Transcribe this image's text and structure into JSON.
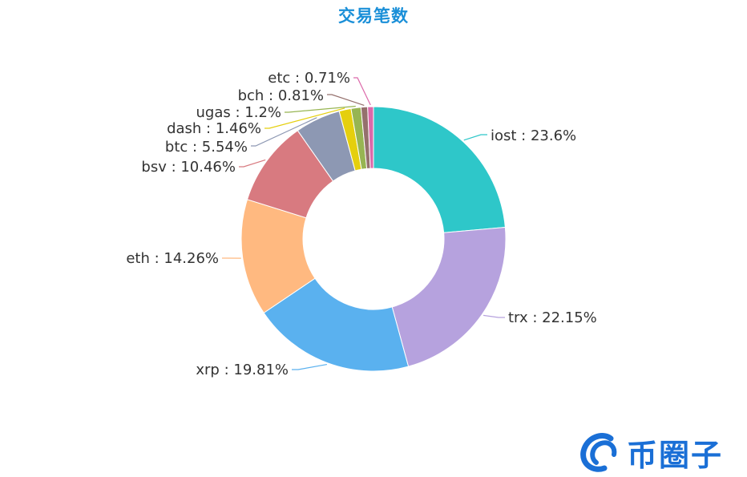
{
  "chart_data": {
    "type": "pie",
    "donut": true,
    "title": "交易笔数",
    "labels": [
      "iost",
      "trx",
      "xrp",
      "eth",
      "bsv",
      "btc",
      "dash",
      "ugas",
      "bch",
      "etc"
    ],
    "values": [
      23.6,
      22.15,
      19.81,
      14.26,
      10.46,
      5.54,
      1.46,
      1.2,
      0.81,
      0.71
    ],
    "display_labels": [
      "iost : 23.6%",
      "trx : 22.15%",
      "xrp : 19.81%",
      "eth : 14.26%",
      "bsv : 10.46%",
      "btc : 5.54%",
      "dash : 1.46%",
      "ugas : 1.2%",
      "bch : 0.81%",
      "etc : 0.71%"
    ],
    "colors": [
      "#2ec7c9",
      "#b6a2de",
      "#5ab1ef",
      "#ffb980",
      "#d87a80",
      "#8d98b3",
      "#e5cf0d",
      "#97b552",
      "#95706d",
      "#dc69aa"
    ],
    "legend": "none"
  },
  "watermark": {
    "text": "币圈子",
    "color": "#1a6fd6"
  }
}
